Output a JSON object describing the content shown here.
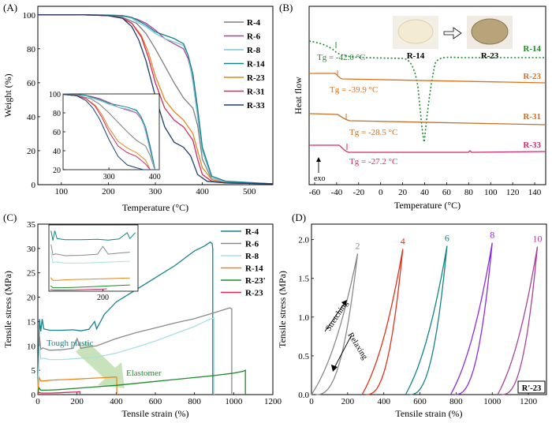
{
  "chart_data": [
    {
      "panel_label": "(A)",
      "type": "line",
      "xlabel": "Temperature (°C)",
      "ylabel": "Weight (%)",
      "xlim": [
        50,
        550
      ],
      "ylim": [
        0,
        105
      ],
      "xticks": [
        "100",
        "200",
        "300",
        "400",
        "500"
      ],
      "yticks": [
        "0",
        "20",
        "40",
        "60",
        "80",
        "100"
      ],
      "legend_position": "right",
      "series": [
        {
          "name": "R-4",
          "color": "#7f7f7f",
          "x": [
            50,
            150,
            200,
            230,
            260,
            280,
            300,
            320,
            340,
            360,
            370,
            380,
            390,
            400,
            420,
            450,
            550
          ],
          "y": [
            100,
            100,
            99.5,
            98.5,
            95,
            89,
            80,
            70,
            60,
            51,
            48,
            45,
            35,
            15,
            3,
            1,
            0.5
          ]
        },
        {
          "name": "R-6",
          "color": "#a8439a",
          "x": [
            50,
            150,
            200,
            230,
            260,
            280,
            300,
            320,
            340,
            360,
            370,
            380,
            390,
            400,
            420,
            450,
            550
          ],
          "y": [
            100,
            100,
            99.8,
            99.3,
            97.5,
            95,
            91,
            86,
            83,
            80,
            74,
            62,
            42,
            20,
            4,
            1.5,
            0.5
          ]
        },
        {
          "name": "R-8",
          "color": "#7fc6d8",
          "x": [
            50,
            150,
            200,
            230,
            250,
            260,
            280,
            300,
            320,
            340,
            360,
            370,
            380,
            390,
            400,
            420,
            450,
            550
          ],
          "y": [
            100,
            100,
            99.8,
            99.5,
            98,
            96,
            93,
            89,
            86,
            84,
            82,
            76,
            60,
            40,
            20,
            4,
            1.5,
            0.5
          ]
        },
        {
          "name": "R-14",
          "color": "#13838a",
          "x": [
            50,
            150,
            200,
            230,
            250,
            260,
            280,
            300,
            320,
            340,
            360,
            370,
            380,
            390,
            400,
            420,
            450,
            550
          ],
          "y": [
            100,
            100,
            99.8,
            99.5,
            98.5,
            97,
            94,
            90,
            88,
            86,
            83,
            76,
            65,
            45,
            22,
            5,
            2,
            0.5
          ]
        },
        {
          "name": "R-23",
          "color": "#e8861e",
          "x": [
            50,
            150,
            200,
            230,
            250,
            270,
            285,
            300,
            320,
            340,
            360,
            380,
            390,
            400,
            420,
            450,
            550
          ],
          "y": [
            100,
            100,
            99.5,
            98,
            95,
            88,
            78,
            64,
            50,
            43,
            38,
            30,
            20,
            10,
            3,
            1,
            0.5
          ]
        },
        {
          "name": "R-31",
          "color": "#d42a5b",
          "x": [
            50,
            150,
            200,
            230,
            250,
            270,
            285,
            300,
            320,
            340,
            360,
            380,
            390,
            400,
            420,
            450,
            550
          ],
          "y": [
            100,
            100,
            99.5,
            98,
            95,
            87,
            75,
            60,
            45,
            38,
            34,
            26,
            15,
            6,
            2,
            1,
            0.5
          ]
        },
        {
          "name": "R-33",
          "color": "#1d3e6e",
          "x": [
            50,
            150,
            200,
            230,
            250,
            265,
            280,
            300,
            320,
            340,
            360,
            375,
            390,
            410,
            450,
            550
          ],
          "y": [
            100,
            100,
            99.5,
            98,
            93,
            85,
            73,
            52,
            34,
            25,
            22,
            17,
            6,
            2,
            1,
            0.5
          ]
        }
      ],
      "inset": {
        "xticks": [
          "300",
          "400"
        ],
        "yticks": [
          "20",
          "40",
          "60",
          "80",
          "100"
        ],
        "xlim": [
          200,
          410
        ],
        "ylim": [
          20,
          100
        ]
      }
    },
    {
      "panel_label": "(B)",
      "type": "line",
      "xlabel": "Temperature (°C)",
      "ylabel": "Heat flow",
      "xlim": [
        -65,
        150
      ],
      "xticks": [
        "-60",
        "-40",
        "-20",
        "0",
        "20",
        "40",
        "60",
        "80",
        "100",
        "120",
        "140"
      ],
      "exo_label": "exo",
      "sample_photo_labels": [
        "R-14",
        "R-23"
      ],
      "series": [
        {
          "name": "R-14",
          "color": "#1f8a2b",
          "style": "dotted",
          "tg": "Tg = -42.0 °C"
        },
        {
          "name": "R-23",
          "color": "#e0701c",
          "style": "solid",
          "tg": "Tg = -39.9 °C"
        },
        {
          "name": "R-31",
          "color": "#c4702a",
          "style": "solid",
          "tg": "Tg = -28.5 °C"
        },
        {
          "name": "R-33",
          "color": "#d42a6b",
          "style": "solid",
          "tg": "Tg = -27.2 °C"
        }
      ]
    },
    {
      "panel_label": "(C)",
      "type": "line",
      "xlabel": "Tensile strain (%)",
      "ylabel": "Tensile stress (MPa)",
      "xlim": [
        0,
        1200
      ],
      "ylim": [
        0,
        35
      ],
      "xticks": [
        "0",
        "200",
        "400",
        "600",
        "800",
        "1000",
        "1200"
      ],
      "yticks": [
        "0",
        "5",
        "10",
        "15",
        "20",
        "25",
        "30",
        "35"
      ],
      "annotations": [
        "Tough plastic",
        "Elastomer"
      ],
      "inset": {
        "xticks": [
          "200"
        ]
      },
      "series": [
        {
          "name": "R-4",
          "color": "#13838a",
          "x": [
            0,
            8,
            15,
            22,
            30,
            60,
            120,
            180,
            220,
            260,
            290,
            300,
            320,
            340,
            400,
            500,
            600,
            700,
            800,
            850,
            880,
            890,
            893,
            893
          ],
          "y": [
            0,
            15.5,
            13,
            15.5,
            13.5,
            13.2,
            13.2,
            13.3,
            13.1,
            13.4,
            15,
            13.5,
            15,
            16.5,
            19,
            21.5,
            24,
            26.5,
            29.5,
            30.5,
            31.3,
            31,
            30,
            0
          ]
        },
        {
          "name": "R-6",
          "color": "#8a8a8a",
          "x": [
            0,
            8,
            15,
            25,
            60,
            120,
            180,
            200,
            220,
            260,
            300,
            400,
            500,
            600,
            700,
            800,
            900,
            980,
            990,
            990
          ],
          "y": [
            0,
            12,
            9.3,
            9.6,
            9.1,
            9.2,
            9.5,
            11.5,
            9.5,
            9.8,
            10,
            11.5,
            12.7,
            13.7,
            14.7,
            15.6,
            16.8,
            17.8,
            17.6,
            0
          ]
        },
        {
          "name": "R-8",
          "color": "#a8dfe4",
          "x": [
            0,
            8,
            15,
            25,
            60,
            120,
            200,
            300,
            400,
            500,
            600,
            700,
            800,
            880,
            900,
            900
          ],
          "y": [
            0,
            10,
            7.3,
            7.5,
            7.2,
            7.2,
            7.4,
            7.7,
            8.5,
            9.7,
            11,
            12.5,
            14,
            15.5,
            15.7,
            0
          ]
        },
        {
          "name": "R-14",
          "color": "#e8861e",
          "x": [
            0,
            6,
            15,
            30,
            80,
            150,
            200,
            250,
            300,
            350,
            390,
            400,
            403,
            403
          ],
          "y": [
            0,
            3.5,
            2.8,
            2.8,
            3,
            3.1,
            3.2,
            3.3,
            3.4,
            3.5,
            3.6,
            3.6,
            3.5,
            0
          ]
        },
        {
          "name": "R-23'",
          "color": "#1f8a2b",
          "x": [
            0,
            6,
            15,
            50,
            100,
            200,
            300,
            400,
            500,
            600,
            700,
            800,
            900,
            1000,
            1050,
            1060,
            1060
          ],
          "y": [
            0,
            1.4,
            0.9,
            0.9,
            1,
            1.3,
            1.6,
            1.9,
            2.3,
            2.7,
            3.1,
            3.5,
            3.9,
            4.4,
            4.8,
            5,
            0
          ]
        },
        {
          "name": "R-23",
          "color": "#d42a5b",
          "x": [
            0,
            5,
            20,
            60,
            100,
            150,
            200,
            215,
            215
          ],
          "y": [
            0,
            0.4,
            0.3,
            0.3,
            0.35,
            0.45,
            0.55,
            0.6,
            0
          ]
        }
      ]
    },
    {
      "panel_label": "(D)",
      "type": "line",
      "xlabel": "Tensile strain (%)",
      "ylabel": "Tensile stress (MPa)",
      "xlim": [
        0,
        1300
      ],
      "ylim": [
        0,
        2.2
      ],
      "xticks": [
        "0",
        "200",
        "400",
        "600",
        "800",
        "1000",
        "1200"
      ],
      "yticks": [
        "0.0",
        "0.5",
        "1.0",
        "1.5",
        "2.0"
      ],
      "sample_label": "R'-23",
      "arrow_labels": [
        "Stretching",
        "Relaxing"
      ],
      "cycles": [
        {
          "label": "2",
          "color": "#8a8a8a",
          "x0": 0,
          "peak_strain": 255,
          "peak_stress": 1.82
        },
        {
          "label": "4",
          "color": "#e0301e",
          "x0": 280,
          "peak_strain": 505,
          "peak_stress": 1.88
        },
        {
          "label": "6",
          "color": "#13838a",
          "x0": 520,
          "peak_strain": 750,
          "peak_stress": 1.92
        },
        {
          "label": "8",
          "color": "#8a2be2",
          "x0": 770,
          "peak_strain": 1000,
          "peak_stress": 1.96
        },
        {
          "label": "10",
          "color": "#a8439a",
          "x0": 1030,
          "peak_strain": 1250,
          "peak_stress": 1.91
        }
      ]
    }
  ]
}
